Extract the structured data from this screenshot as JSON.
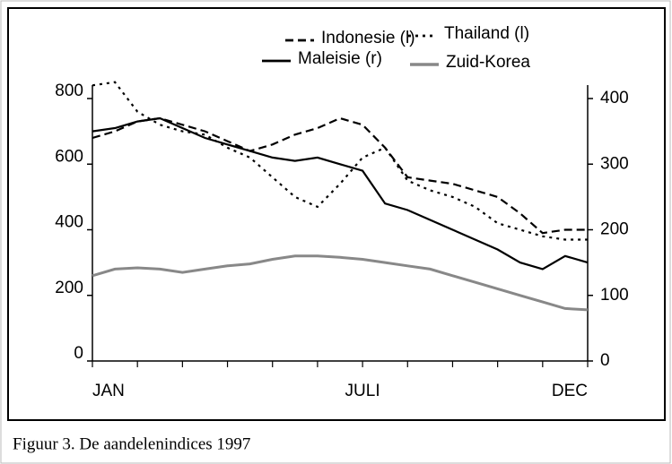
{
  "chart_data": {
    "type": "line",
    "caption": "Figuur 3. De aandelenindices 1997",
    "categories": [
      "JAN",
      null,
      null,
      null,
      null,
      null,
      null,
      null,
      null,
      null,
      null,
      null,
      "JULI",
      null,
      null,
      null,
      null,
      null,
      null,
      null,
      null,
      null,
      "DEC"
    ],
    "series": [
      {
        "name": "Indonesie (l)",
        "color": "#000000",
        "style": "dashed",
        "axis": "y",
        "values": [
          680,
          700,
          730,
          740,
          720,
          700,
          670,
          640,
          660,
          690,
          710,
          740,
          720,
          650,
          560,
          550,
          540,
          520,
          500,
          450,
          390,
          400,
          400
        ]
      },
      {
        "name": "Thailand (l)",
        "color": "#000000",
        "style": "dotted",
        "axis": "y",
        "values": [
          840,
          850,
          760,
          720,
          700,
          690,
          650,
          620,
          560,
          500,
          470,
          540,
          620,
          650,
          550,
          520,
          500,
          470,
          420,
          400,
          380,
          370,
          370
        ]
      },
      {
        "name": "Maleisie (r)",
        "color": "#000000",
        "style": "solid",
        "axis": "y2",
        "values": [
          350,
          355,
          365,
          370,
          355,
          340,
          330,
          320,
          310,
          305,
          310,
          300,
          290,
          240,
          230,
          215,
          200,
          185,
          170,
          150,
          140,
          160,
          150
        ]
      },
      {
        "name": "Zuid-Korea",
        "color": "#888888",
        "style": "solid",
        "axis": "y2",
        "values": [
          130,
          140,
          142,
          140,
          135,
          140,
          145,
          148,
          155,
          160,
          160,
          158,
          155,
          150,
          145,
          140,
          130,
          120,
          110,
          100,
          90,
          80,
          78
        ]
      }
    ],
    "ylim": [
      0,
      800
    ],
    "yticks": [
      0,
      200,
      400,
      600,
      800
    ],
    "y2lim": [
      0,
      400
    ],
    "y2ticks": [
      0,
      100,
      200,
      300,
      400
    ],
    "grid": false
  }
}
